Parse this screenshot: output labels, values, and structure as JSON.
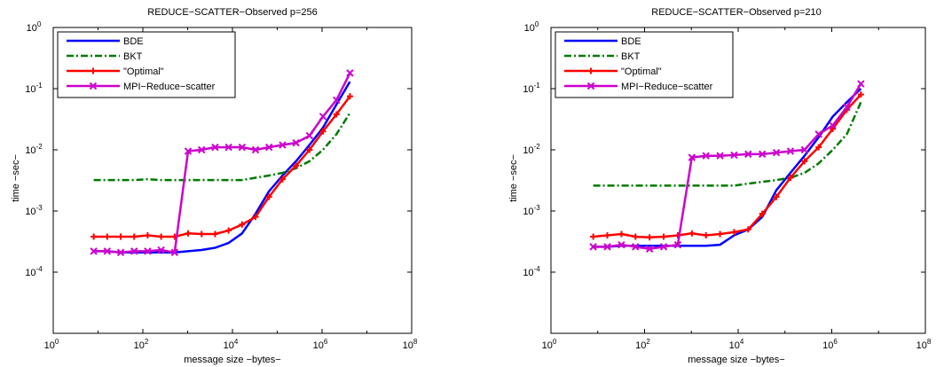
{
  "chart_data": [
    {
      "type": "line",
      "title": "REDUCE−SCATTER−Observed p=256",
      "xlabel": "message size −bytes−",
      "ylabel": "time −sec−",
      "xscale": "log",
      "yscale": "log",
      "xlim": [
        1,
        100000000
      ],
      "ylim": [
        1e-05,
        1
      ],
      "x_ticks": [
        {
          "base": "10",
          "exp": "0"
        },
        {
          "base": "10",
          "exp": "2"
        },
        {
          "base": "10",
          "exp": "4"
        },
        {
          "base": "10",
          "exp": "6"
        },
        {
          "base": "10",
          "exp": "8"
        }
      ],
      "y_ticks": [
        {
          "base": "10",
          "exp": "-4"
        },
        {
          "base": "10",
          "exp": "-3"
        },
        {
          "base": "10",
          "exp": "-2"
        },
        {
          "base": "10",
          "exp": "-1"
        },
        {
          "base": "10",
          "exp": "0"
        }
      ],
      "grid": false,
      "legend_position": "top-left",
      "series": [
        {
          "name": "BDE",
          "color": "#0000ff",
          "style": "solid",
          "marker": "none",
          "x": [
            8,
            16,
            32,
            64,
            128,
            256,
            512,
            1024,
            2048,
            4096,
            8192,
            16384,
            32768,
            65536,
            131072,
            262144,
            524288,
            1048576,
            2097152,
            4194304
          ],
          "y": [
            0.00022,
            0.00022,
            0.00021,
            0.00021,
            0.00021,
            0.00021,
            0.00021,
            0.00022,
            0.00023,
            0.00025,
            0.0003,
            0.00043,
            0.0009,
            0.0021,
            0.0038,
            0.0065,
            0.012,
            0.023,
            0.055,
            0.13
          ]
        },
        {
          "name": "BKT",
          "color": "#007a00",
          "style": "dashdot",
          "marker": "none",
          "x": [
            8,
            16,
            32,
            64,
            128,
            256,
            512,
            1024,
            2048,
            4096,
            8192,
            16384,
            32768,
            65536,
            131072,
            262144,
            524288,
            1048576,
            2097152,
            4194304
          ],
          "y": [
            0.0032,
            0.0032,
            0.0032,
            0.0032,
            0.0033,
            0.0032,
            0.0032,
            0.0032,
            0.0032,
            0.0032,
            0.0032,
            0.0032,
            0.0035,
            0.0038,
            0.0042,
            0.005,
            0.0065,
            0.01,
            0.018,
            0.04
          ]
        },
        {
          "name": "\"Optimal\"",
          "color": "#ff0000",
          "style": "solid",
          "marker": "plus",
          "x": [
            8,
            16,
            32,
            64,
            128,
            256,
            512,
            1024,
            2048,
            4096,
            8192,
            16384,
            32768,
            65536,
            131072,
            262144,
            524288,
            1048576,
            2097152,
            4194304
          ],
          "y": [
            0.00038,
            0.00038,
            0.00038,
            0.00038,
            0.0004,
            0.00038,
            0.00038,
            0.00043,
            0.00042,
            0.00042,
            0.00048,
            0.0006,
            0.0008,
            0.0017,
            0.0033,
            0.0055,
            0.01,
            0.02,
            0.038,
            0.075
          ]
        },
        {
          "name": "MPI−Reduce−scatter",
          "color": "#cc00cc",
          "style": "solid",
          "marker": "x",
          "x": [
            8,
            16,
            32,
            64,
            128,
            256,
            512,
            1024,
            2048,
            4096,
            8192,
            16384,
            32768,
            65536,
            131072,
            262144,
            524288,
            1048576,
            2097152,
            4194304
          ],
          "y": [
            0.00022,
            0.00022,
            0.00021,
            0.00022,
            0.00022,
            0.00023,
            0.00021,
            0.0095,
            0.01,
            0.011,
            0.011,
            0.011,
            0.01,
            0.011,
            0.012,
            0.013,
            0.017,
            0.035,
            0.065,
            0.18
          ]
        }
      ]
    },
    {
      "type": "line",
      "title": "REDUCE−SCATTER−Observed p=210",
      "xlabel": "message size −bytes−",
      "ylabel": "time −sec−",
      "xscale": "log",
      "yscale": "log",
      "xlim": [
        1,
        100000000
      ],
      "ylim": [
        1e-05,
        1
      ],
      "x_ticks": [
        {
          "base": "10",
          "exp": "0"
        },
        {
          "base": "10",
          "exp": "2"
        },
        {
          "base": "10",
          "exp": "4"
        },
        {
          "base": "10",
          "exp": "6"
        },
        {
          "base": "10",
          "exp": "8"
        }
      ],
      "y_ticks": [
        {
          "base": "10",
          "exp": "-4"
        },
        {
          "base": "10",
          "exp": "-3"
        },
        {
          "base": "10",
          "exp": "-2"
        },
        {
          "base": "10",
          "exp": "-1"
        },
        {
          "base": "10",
          "exp": "0"
        }
      ],
      "grid": false,
      "legend_position": "top-left",
      "series": [
        {
          "name": "BDE",
          "color": "#0000ff",
          "style": "solid",
          "marker": "none",
          "x": [
            8,
            16,
            32,
            64,
            128,
            256,
            512,
            1024,
            2048,
            4096,
            8192,
            16384,
            32768,
            65536,
            131072,
            262144,
            524288,
            1048576,
            2097152,
            4194304
          ],
          "y": [
            0.00026,
            0.00026,
            0.00027,
            0.00027,
            0.00027,
            0.00027,
            0.00027,
            0.00027,
            0.00027,
            0.00028,
            0.0004,
            0.0005,
            0.0008,
            0.0022,
            0.0042,
            0.008,
            0.016,
            0.035,
            0.06,
            0.1
          ]
        },
        {
          "name": "BKT",
          "color": "#007a00",
          "style": "dashdot",
          "marker": "none",
          "x": [
            8,
            16,
            32,
            64,
            128,
            256,
            512,
            1024,
            2048,
            4096,
            8192,
            16384,
            32768,
            65536,
            131072,
            262144,
            524288,
            1048576,
            2097152,
            4194304
          ],
          "y": [
            0.0026,
            0.0026,
            0.0026,
            0.0026,
            0.0026,
            0.0026,
            0.0026,
            0.0026,
            0.0026,
            0.0026,
            0.0026,
            0.0028,
            0.003,
            0.0032,
            0.0035,
            0.0042,
            0.006,
            0.01,
            0.018,
            0.06
          ]
        },
        {
          "name": "\"Optimal\"",
          "color": "#ff0000",
          "style": "solid",
          "marker": "plus",
          "x": [
            8,
            16,
            32,
            64,
            128,
            256,
            512,
            1024,
            2048,
            4096,
            8192,
            16384,
            32768,
            65536,
            131072,
            262144,
            524288,
            1048576,
            2097152,
            4194304
          ],
          "y": [
            0.00038,
            0.0004,
            0.00042,
            0.00038,
            0.00037,
            0.00038,
            0.0004,
            0.00043,
            0.0004,
            0.00042,
            0.00045,
            0.0005,
            0.0009,
            0.0017,
            0.0035,
            0.0065,
            0.011,
            0.022,
            0.045,
            0.08
          ]
        },
        {
          "name": "MPI−Reduce−scatter",
          "color": "#cc00cc",
          "style": "solid",
          "marker": "x",
          "x": [
            8,
            16,
            32,
            64,
            128,
            256,
            512,
            1024,
            2048,
            4096,
            8192,
            16384,
            32768,
            65536,
            131072,
            262144,
            524288,
            1048576,
            2097152,
            4194304
          ],
          "y": [
            0.00026,
            0.00026,
            0.00028,
            0.00026,
            0.00024,
            0.00026,
            0.00028,
            0.0075,
            0.008,
            0.008,
            0.0082,
            0.0085,
            0.0085,
            0.009,
            0.0095,
            0.01,
            0.018,
            0.025,
            0.05,
            0.12
          ]
        }
      ]
    }
  ]
}
